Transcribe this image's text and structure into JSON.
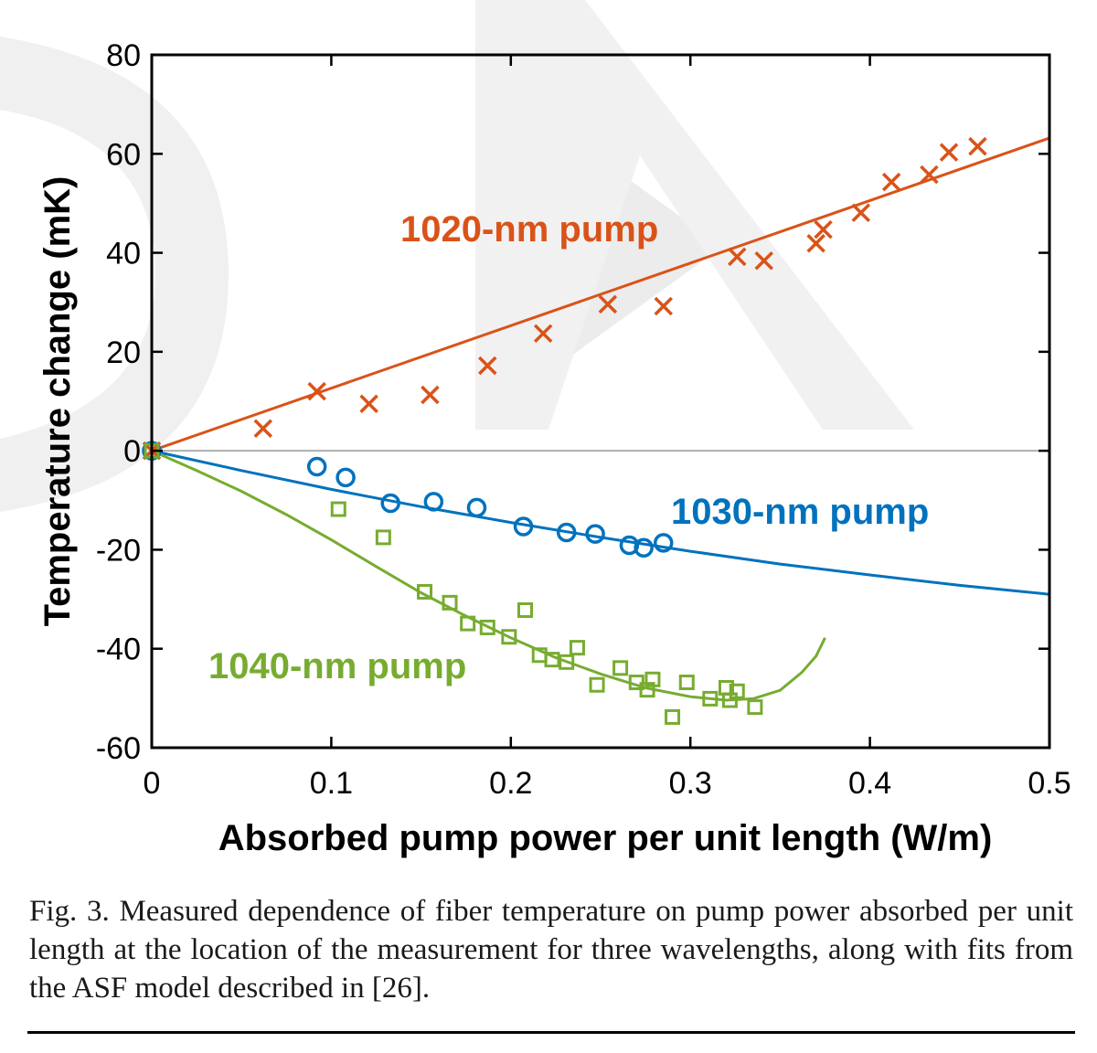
{
  "chart_data": {
    "type": "scatter",
    "xlabel": "Absorbed pump power per unit length (W/m)",
    "ylabel": "Temperature change (mK)",
    "xlim": [
      0,
      0.5
    ],
    "ylim": [
      -60,
      80
    ],
    "xticks": [
      0,
      0.1,
      0.2,
      0.3,
      0.4,
      0.5
    ],
    "yticks": [
      -60,
      -40,
      -20,
      0,
      20,
      40,
      60,
      80
    ],
    "xtick_labels": [
      "0",
      "0.1",
      "0.2",
      "0.3",
      "0.4",
      "0.5"
    ],
    "ytick_labels": [
      "-60",
      "-40",
      "-20",
      "0",
      "20",
      "40",
      "60",
      "80"
    ],
    "grid": false,
    "zero_line": true,
    "series": [
      {
        "name": "1020-nm pump",
        "marker": "x",
        "color": "#D95319",
        "points": [
          [
            0,
            0
          ],
          [
            0.062,
            4.5
          ],
          [
            0.092,
            12
          ],
          [
            0.121,
            9.5
          ],
          [
            0.155,
            11.3
          ],
          [
            0.187,
            17.2
          ],
          [
            0.218,
            23.7
          ],
          [
            0.254,
            29.6
          ],
          [
            0.285,
            29.2
          ],
          [
            0.326,
            39.2
          ],
          [
            0.341,
            38.4
          ],
          [
            0.37,
            41.9
          ],
          [
            0.374,
            44.7
          ],
          [
            0.395,
            48.1
          ],
          [
            0.412,
            54.3
          ],
          [
            0.433,
            55.8
          ],
          [
            0.444,
            60.3
          ],
          [
            0.46,
            61.5
          ]
        ],
        "fit": [
          [
            0,
            0
          ],
          [
            0.5,
            63.2
          ]
        ]
      },
      {
        "name": "1030-nm pump",
        "marker": "o",
        "color": "#0072BD",
        "points": [
          [
            0,
            0
          ],
          [
            0.092,
            -3.2
          ],
          [
            0.108,
            -5.4
          ],
          [
            0.133,
            -10.6
          ],
          [
            0.157,
            -10.3
          ],
          [
            0.181,
            -11.5
          ],
          [
            0.207,
            -15.3
          ],
          [
            0.231,
            -16.5
          ],
          [
            0.247,
            -16.8
          ],
          [
            0.266,
            -19.1
          ],
          [
            0.274,
            -19.6
          ],
          [
            0.285,
            -18.6
          ]
        ],
        "fit": [
          [
            0,
            0
          ],
          [
            0.05,
            -4
          ],
          [
            0.1,
            -7.8
          ],
          [
            0.15,
            -11.3
          ],
          [
            0.2,
            -14.5
          ],
          [
            0.25,
            -17.5
          ],
          [
            0.3,
            -20.3
          ],
          [
            0.35,
            -22.9
          ],
          [
            0.4,
            -25.1
          ],
          [
            0.45,
            -27.2
          ],
          [
            0.5,
            -29
          ]
        ]
      },
      {
        "name": "1040-nm pump",
        "marker": "square",
        "color": "#77AC30",
        "points": [
          [
            0,
            0
          ],
          [
            0.104,
            -11.8
          ],
          [
            0.129,
            -17.5
          ],
          [
            0.152,
            -28.5
          ],
          [
            0.166,
            -30.7
          ],
          [
            0.176,
            -34.9
          ],
          [
            0.187,
            -35.7
          ],
          [
            0.199,
            -37.6
          ],
          [
            0.208,
            -32.2
          ],
          [
            0.216,
            -41.3
          ],
          [
            0.223,
            -42.2
          ],
          [
            0.231,
            -42.7
          ],
          [
            0.237,
            -39.8
          ],
          [
            0.248,
            -47.3
          ],
          [
            0.261,
            -43.9
          ],
          [
            0.27,
            -46.8
          ],
          [
            0.276,
            -48.3
          ],
          [
            0.279,
            -46.2
          ],
          [
            0.29,
            -53.8
          ],
          [
            0.298,
            -46.8
          ],
          [
            0.311,
            -50.1
          ],
          [
            0.32,
            -47.9
          ],
          [
            0.322,
            -50.4
          ],
          [
            0.326,
            -48.6
          ],
          [
            0.336,
            -51.8
          ]
        ],
        "fit": [
          [
            0,
            0
          ],
          [
            0.025,
            -4
          ],
          [
            0.05,
            -8.2
          ],
          [
            0.075,
            -12.9
          ],
          [
            0.1,
            -18
          ],
          [
            0.125,
            -23.4
          ],
          [
            0.15,
            -28.7
          ],
          [
            0.175,
            -33.4
          ],
          [
            0.2,
            -37.8
          ],
          [
            0.225,
            -41.8
          ],
          [
            0.25,
            -45.1
          ],
          [
            0.275,
            -47.9
          ],
          [
            0.3,
            -49.7
          ],
          [
            0.32,
            -50.4
          ],
          [
            0.335,
            -50.1
          ],
          [
            0.35,
            -48.4
          ],
          [
            0.362,
            -44.8
          ],
          [
            0.37,
            -41.5
          ],
          [
            0.375,
            -37.8
          ]
        ]
      }
    ]
  },
  "caption": "Fig. 3. Measured dependence of fiber temperature on pump power absorbed per unit length at the location of the measurement for three wavelengths, along with fits from the ASF model described in [26]."
}
